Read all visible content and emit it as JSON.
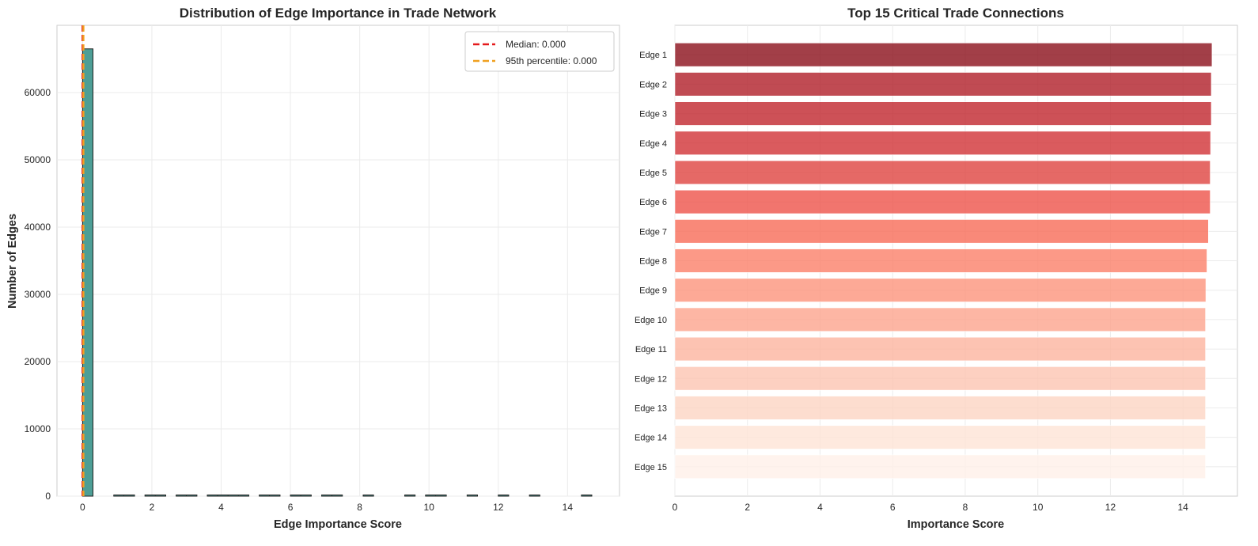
{
  "chart_data": [
    {
      "type": "bar",
      "subtype": "histogram",
      "title": "Distribution of Edge Importance in Trade Network",
      "xlabel": "Edge Importance Score",
      "ylabel": "Number of Edges",
      "xlim": [
        -0.74,
        15.5
      ],
      "ylim": [
        0,
        70000
      ],
      "xticks": [
        0,
        2,
        4,
        6,
        8,
        10,
        12,
        14
      ],
      "yticks": [
        0,
        10000,
        20000,
        30000,
        40000,
        50000,
        60000
      ],
      "bin_width": 0.3,
      "bins": [
        {
          "x0": 0.0,
          "count": 66500
        },
        {
          "x0": 0.9,
          "count": 60
        },
        {
          "x0": 1.2,
          "count": 60
        },
        {
          "x0": 1.8,
          "count": 60
        },
        {
          "x0": 2.1,
          "count": 60
        },
        {
          "x0": 2.7,
          "count": 60
        },
        {
          "x0": 3.0,
          "count": 60
        },
        {
          "x0": 3.6,
          "count": 60
        },
        {
          "x0": 3.9,
          "count": 60
        },
        {
          "x0": 4.2,
          "count": 60
        },
        {
          "x0": 4.5,
          "count": 60
        },
        {
          "x0": 5.1,
          "count": 60
        },
        {
          "x0": 5.4,
          "count": 60
        },
        {
          "x0": 6.0,
          "count": 60
        },
        {
          "x0": 6.3,
          "count": 60
        },
        {
          "x0": 6.9,
          "count": 60
        },
        {
          "x0": 7.2,
          "count": 60
        },
        {
          "x0": 8.1,
          "count": 60
        },
        {
          "x0": 9.3,
          "count": 60
        },
        {
          "x0": 9.9,
          "count": 60
        },
        {
          "x0": 10.2,
          "count": 60
        },
        {
          "x0": 11.1,
          "count": 60
        },
        {
          "x0": 12.0,
          "count": 60
        },
        {
          "x0": 12.9,
          "count": 60
        },
        {
          "x0": 14.4,
          "count": 60
        }
      ],
      "bar_color": "#4d9e96",
      "vlines": [
        {
          "label": "Median: 0.000",
          "x": 0.0,
          "color": "#e41a1c"
        },
        {
          "label": "95th percentile: 0.000",
          "x": 0.0,
          "color": "#f0a020"
        }
      ],
      "legend_position": "upper right",
      "grid": true
    },
    {
      "type": "bar",
      "orientation": "horizontal",
      "title": "Top 15 Critical Trade Connections",
      "xlabel": "Importance Score",
      "ylabel": "",
      "xlim": [
        0,
        15.5
      ],
      "xticks": [
        0,
        2,
        4,
        6,
        8,
        10,
        12,
        14
      ],
      "categories": [
        "Edge 1",
        "Edge 2",
        "Edge 3",
        "Edge 4",
        "Edge 5",
        "Edge 6",
        "Edge 7",
        "Edge 8",
        "Edge 9",
        "Edge 10",
        "Edge 11",
        "Edge 12",
        "Edge 13",
        "Edge 14",
        "Edge 15"
      ],
      "values": [
        14.8,
        14.78,
        14.78,
        14.76,
        14.75,
        14.75,
        14.7,
        14.66,
        14.63,
        14.62,
        14.62,
        14.62,
        14.62,
        14.62,
        14.62
      ],
      "colors": [
        "#8b0f1a",
        "#b01e28",
        "#c0262d",
        "#d13236",
        "#df4340",
        "#ee534a",
        "#f76b58",
        "#fb8069",
        "#fc937c",
        "#fca48d",
        "#fcb49f",
        "#fcc4b1",
        "#fdd4c3",
        "#fee3d6",
        "#fff0e8"
      ],
      "grid": true
    }
  ]
}
